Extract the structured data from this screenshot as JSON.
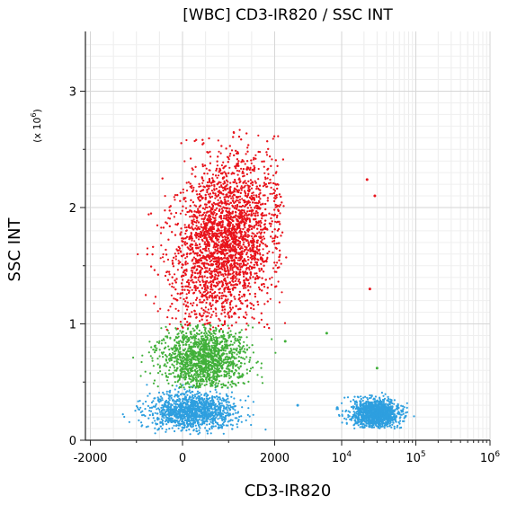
{
  "chart_data": {
    "type": "scatter",
    "title": "[WBC] CD3-IR820 / SSC INT",
    "xlabel": "CD3-IR820",
    "ylabel": "SSC INT",
    "y_multiplier_label": "(x 10",
    "y_multiplier_exp": "6",
    "y_multiplier_close": ")",
    "x_scale": "biexponential (linear -2000 to 2000, logarithmic 10^4 to 10^6)",
    "y_scale": "linear",
    "xlim": [
      -2500,
      1000000
    ],
    "ylim": [
      0,
      3.5
    ],
    "grid": true,
    "x_ticks": [
      {
        "value": -2000,
        "label": "-2000"
      },
      {
        "value": 0,
        "label": "0"
      },
      {
        "value": 2000,
        "label": "2000"
      },
      {
        "value": 10000,
        "base": "10",
        "exp": "4"
      },
      {
        "value": 100000,
        "base": "10",
        "exp": "5"
      },
      {
        "value": 1000000,
        "base": "10",
        "exp": "6"
      }
    ],
    "y_ticks": [
      {
        "value": 0,
        "label": "0"
      },
      {
        "value": 1,
        "label": "1"
      },
      {
        "value": 2,
        "label": "2"
      },
      {
        "value": 3,
        "label": "3"
      }
    ],
    "populations": [
      {
        "color": "#e8141c",
        "x_center": 900,
        "x_spread": 550,
        "y_center": 1.72,
        "y_spread": 0.36,
        "y_range": [
          0.95,
          2.7
        ]
      },
      {
        "color": "#41b03a",
        "x_center": 450,
        "x_spread": 450,
        "y_center": 0.7,
        "y_spread": 0.14,
        "y_range": [
          0.45,
          1.0
        ]
      },
      {
        "color": "#2e9fdf",
        "x_center": 200,
        "x_spread": 450,
        "y_center": 0.25,
        "y_spread": 0.08,
        "y_range": [
          0.05,
          0.5
        ]
      },
      {
        "color": "#2e9fdf",
        "x_center": 28000,
        "x_spread": 12000,
        "y_center": 0.23,
        "y_spread": 0.06,
        "y_range": [
          0.1,
          0.42
        ]
      }
    ],
    "sparse_points": [
      {
        "x": 2600,
        "y": 0.85,
        "color": "#41b03a"
      },
      {
        "x": 30000,
        "y": 0.62,
        "color": "#41b03a"
      },
      {
        "x": 7000,
        "y": 0.92,
        "color": "#41b03a"
      },
      {
        "x": 22000,
        "y": 2.24,
        "color": "#e8141c"
      },
      {
        "x": 28000,
        "y": 2.1,
        "color": "#e8141c"
      },
      {
        "x": 24000,
        "y": 1.3,
        "color": "#e8141c"
      },
      {
        "x": 3500,
        "y": 0.3,
        "color": "#2e9fdf"
      },
      {
        "x": 9000,
        "y": 0.28,
        "color": "#2e9fdf"
      }
    ]
  }
}
